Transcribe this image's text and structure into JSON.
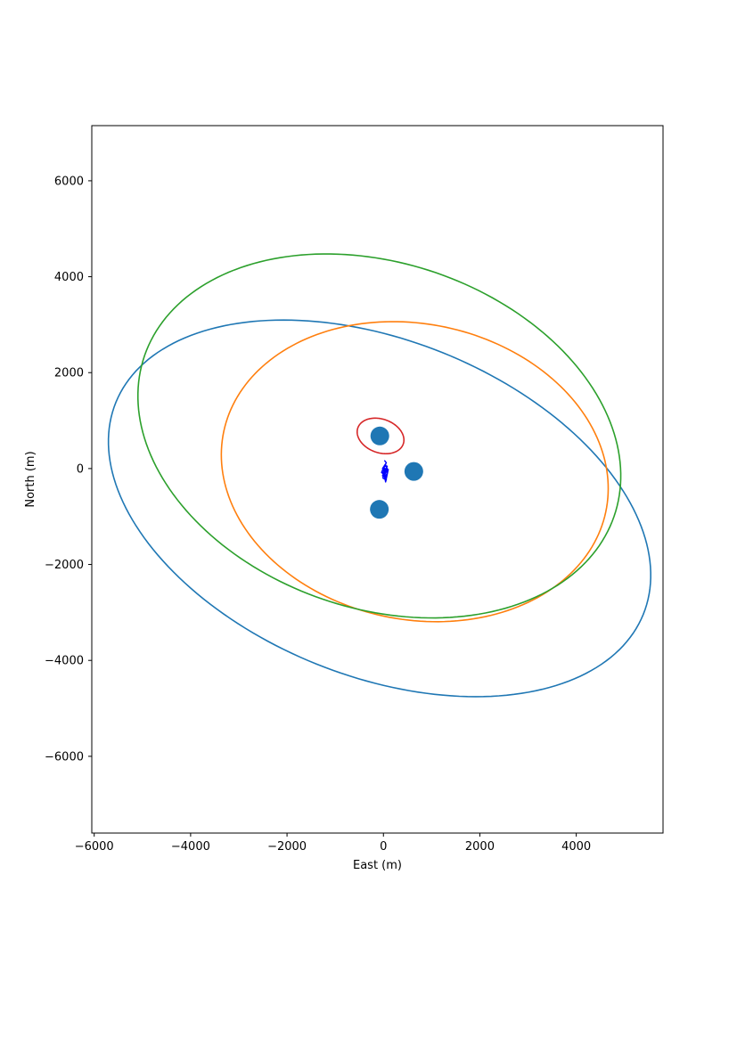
{
  "chart_data": {
    "type": "scatter",
    "title": "",
    "xlabel": "East (m)",
    "ylabel": "North (m)",
    "xlim": [
      -6050,
      5800
    ],
    "ylim": [
      -7600,
      7150
    ],
    "grid": false,
    "legend": "none",
    "x_ticks": [
      -6000,
      -4000,
      -2000,
      0,
      2000,
      4000
    ],
    "y_ticks": [
      -6000,
      -4000,
      -2000,
      0,
      2000,
      4000,
      6000
    ],
    "x_tick_labels": [
      "−6000",
      "−4000",
      "−2000",
      "0",
      "2000",
      "4000"
    ],
    "y_tick_labels": [
      "−6000",
      "−4000",
      "−2000",
      "0",
      "2000",
      "4000",
      "6000"
    ],
    "points": {
      "color": "#1f77b4",
      "x": [
        -75,
        630,
        -85
      ],
      "y": [
        680,
        -60,
        -850
      ]
    },
    "ellipses": [
      {
        "center": [
          -80,
          -830
        ],
        "semi_major": 5900,
        "semi_minor": 3500,
        "angle_deg": -22,
        "color": "#1f77b4"
      },
      {
        "center": [
          650,
          -65
        ],
        "semi_major": 4050,
        "semi_minor": 3080,
        "angle_deg": -12,
        "color": "#ff7f0e"
      },
      {
        "center": [
          -60,
          680
        ],
        "semi_major": 500,
        "semi_minor": 350,
        "angle_deg": -20,
        "color": "#d62728"
      },
      {
        "center": [
          -85,
          680
        ],
        "semi_major": 5150,
        "semi_minor": 3600,
        "angle_deg": -19,
        "color": "#2ca02c"
      }
    ],
    "track": {
      "color": "#0000ff",
      "x": [
        20,
        60,
        20,
        -20,
        40,
        80,
        10,
        -30,
        30,
        70,
        0,
        -40,
        50,
        90,
        20,
        -10,
        60,
        30,
        80,
        40,
        0,
        50,
        -20,
        30,
        70,
        10,
        45,
        100,
        20,
        40
      ],
      "y": [
        170,
        120,
        60,
        0,
        -20,
        50,
        40,
        -60,
        -120,
        -40,
        -10,
        -80,
        -160,
        -60,
        10,
        -200,
        -240,
        -100,
        0,
        90,
        -30,
        -190,
        -150,
        -50,
        40,
        -100,
        -280,
        -20,
        -120,
        0
      ]
    }
  }
}
